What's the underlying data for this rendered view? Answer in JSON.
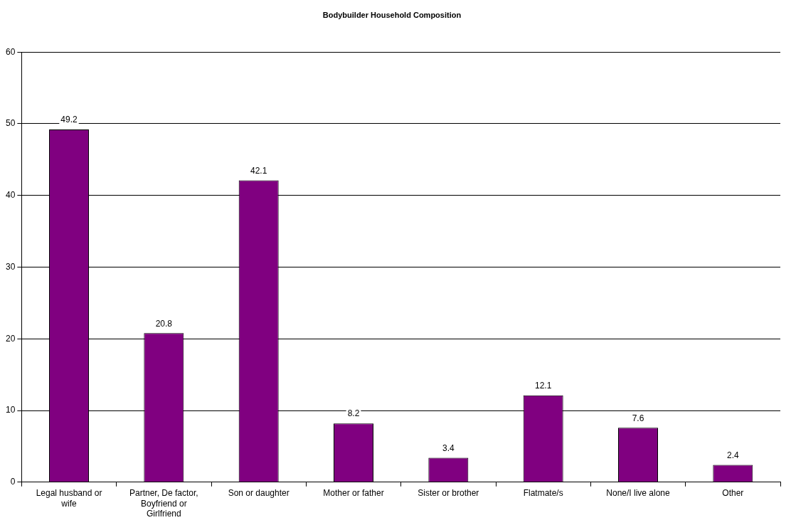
{
  "chart_data": {
    "type": "bar",
    "title": "Bodybuilder Household Composition",
    "categories": [
      "Legal husband or wife",
      "Partner, De factor, Boyfriend or Girlfriend",
      "Son or daughter",
      "Mother or father",
      "Sister or brother",
      "Flatmate/s",
      "None/I live alone",
      "Other"
    ],
    "values": [
      49.2,
      20.8,
      42.1,
      8.2,
      3.4,
      12.1,
      7.6,
      2.4
    ],
    "color": "#800080",
    "ylim": [
      0,
      60
    ],
    "yticks": [
      0,
      10,
      20,
      30,
      40,
      50,
      60
    ],
    "grid": "y",
    "data_labels": true,
    "legend": false
  }
}
